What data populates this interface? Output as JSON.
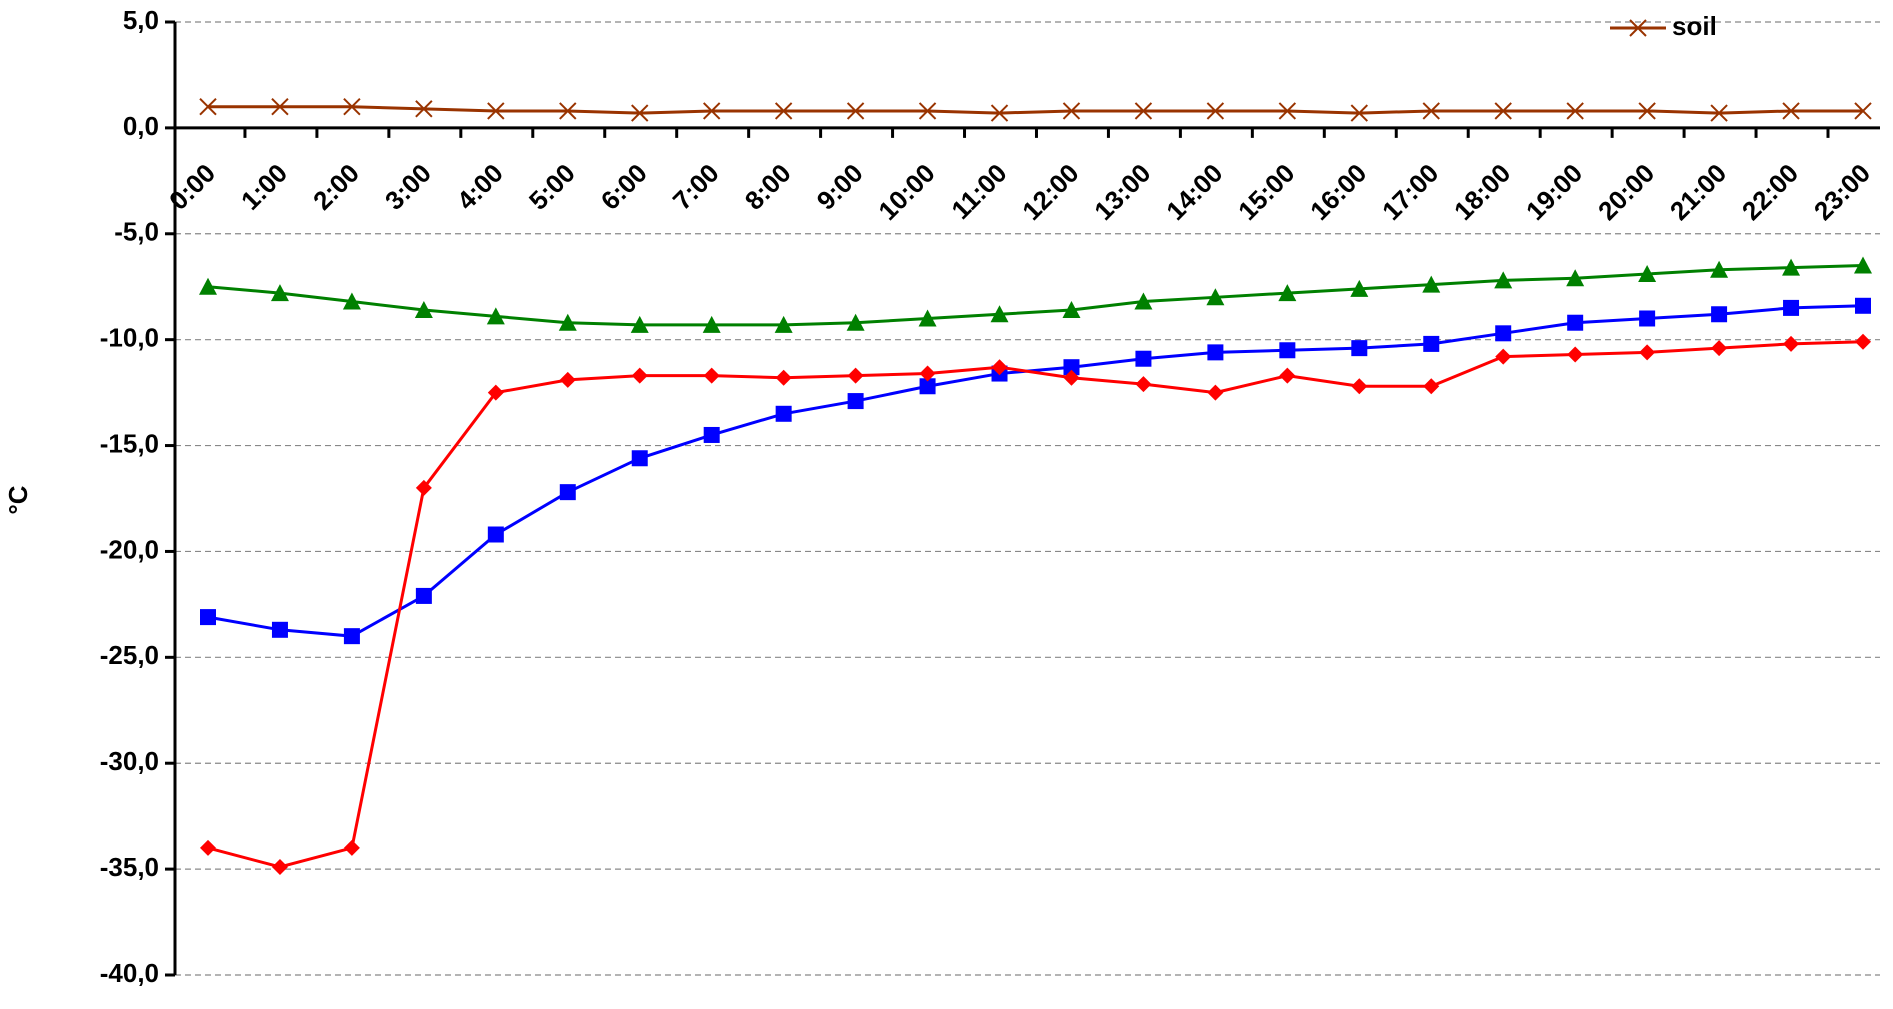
{
  "chart_data": {
    "type": "line",
    "y_label": "°C",
    "categories": [
      "0:00",
      "1:00",
      "2:00",
      "3:00",
      "4:00",
      "5:00",
      "6:00",
      "7:00",
      "8:00",
      "9:00",
      "10:00",
      "11:00",
      "12:00",
      "13:00",
      "14:00",
      "15:00",
      "16:00",
      "17:00",
      "18:00",
      "19:00",
      "20:00",
      "21:00",
      "22:00",
      "23:00"
    ],
    "series": [
      {
        "name": "soil",
        "color": "#993300",
        "marker": "x",
        "values": [
          1.0,
          1.0,
          1.0,
          0.9,
          0.8,
          0.8,
          0.7,
          0.8,
          0.8,
          0.8,
          0.8,
          0.7,
          0.8,
          0.8,
          0.8,
          0.8,
          0.7,
          0.8,
          0.8,
          0.8,
          0.8,
          0.7,
          0.8,
          0.8
        ]
      },
      {
        "color": "#008000",
        "marker": "triangle",
        "values": [
          -7.5,
          -7.8,
          -8.2,
          -8.6,
          -8.9,
          -9.2,
          -9.3,
          -9.3,
          -9.3,
          -9.2,
          -9.0,
          -8.8,
          -8.6,
          -8.2,
          -8.0,
          -7.8,
          -7.6,
          -7.4,
          -7.2,
          -7.1,
          -6.9,
          -6.7,
          -6.6,
          -6.5
        ]
      },
      {
        "color": "#0000ff",
        "marker": "square",
        "values": [
          -23.1,
          -23.7,
          -24.0,
          -22.1,
          -19.2,
          -17.2,
          -15.6,
          -14.5,
          -13.5,
          -12.9,
          -12.2,
          -11.6,
          -11.3,
          -10.9,
          -10.6,
          -10.5,
          -10.4,
          -10.2,
          -9.7,
          -9.2,
          -9.0,
          -8.8,
          -8.5,
          -8.4
        ]
      },
      {
        "color": "#ff0000",
        "marker": "diamond",
        "values": [
          -34.0,
          -34.9,
          -34.0,
          -17.0,
          -12.5,
          -11.9,
          -11.7,
          -11.7,
          -11.8,
          -11.7,
          -11.6,
          -11.3,
          -11.8,
          -12.1,
          -12.5,
          -11.7,
          -12.2,
          -12.2,
          -10.8,
          -10.7,
          -10.6,
          -10.4,
          -10.2,
          -10.1
        ]
      }
    ],
    "ylim": [
      -40,
      5
    ],
    "yticks": [
      {
        "value": 5,
        "label": "5,0"
      },
      {
        "value": 0,
        "label": "0,0"
      },
      {
        "value": -5,
        "label": "-5,0"
      },
      {
        "value": -10,
        "label": "-10,0"
      },
      {
        "value": -15,
        "label": "-15,0"
      },
      {
        "value": -20,
        "label": "-20,0"
      },
      {
        "value": -25,
        "label": "-25,0"
      },
      {
        "value": -30,
        "label": "-30,0"
      },
      {
        "value": -35,
        "label": "-35,0"
      },
      {
        "value": -40,
        "label": "-40,0"
      }
    ],
    "grid": true,
    "legend": "top-right"
  }
}
